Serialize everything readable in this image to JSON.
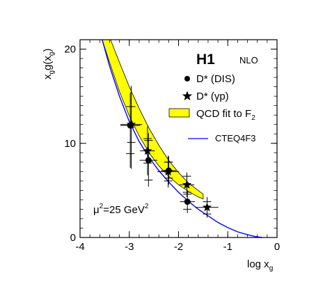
{
  "chart_data": {
    "type": "scatter",
    "xlim": [
      -4,
      0
    ],
    "ylim": [
      0,
      21
    ],
    "x_ticks": [
      -4,
      -3,
      -2,
      -1,
      0
    ],
    "y_ticks": [
      0,
      10,
      20
    ],
    "x_tick_labels": [
      "-4",
      "-3",
      "-2",
      "-1",
      "0"
    ],
    "y_tick_labels": [
      "0",
      "10",
      "20"
    ],
    "xlabel_main": "log x",
    "xlabel_sub": "g",
    "ylabel_parts": {
      "a": "x",
      "a_sub": "g",
      "b": "g(x",
      "b_sub": "g",
      "c": ")"
    },
    "experiment": "H1",
    "order": "NLO",
    "scale_label": {
      "mu": "μ",
      "sup": "2",
      "mid": "=25 GeV",
      "sup2": "2"
    },
    "legend": {
      "dis": {
        "text": "D* (DIS)"
      },
      "gp": {
        "text": "D* (γp)"
      },
      "band": {
        "text": "QCD fit to F",
        "sub": "2",
        "color": "#ffff00"
      },
      "line": {
        "text": "CTEQ4F3",
        "color": "#0000ff"
      }
    },
    "series": [
      {
        "name": "D* (DIS)",
        "marker": "circle",
        "points": [
          {
            "x": -2.98,
            "y": 11.9,
            "xerr": 0.2,
            "ylo": 8.9,
            "yhi": 13.9,
            "ylo2": 7.4,
            "yhi2": 15.4
          },
          {
            "x": -2.61,
            "y": 8.2,
            "xerr": 0.18,
            "ylo": 6.1,
            "yhi": 10.3,
            "ylo2": 5.4,
            "yhi2": 11.1
          },
          {
            "x": -2.2,
            "y": 7.1,
            "xerr": 0.15,
            "ylo": 6.3,
            "yhi": 8.0,
            "ylo2": 5.6,
            "yhi2": 8.6
          },
          {
            "x": -1.82,
            "y": 3.8,
            "xerr": 0.15,
            "ylo": 3.0,
            "yhi": 4.6,
            "ylo2": 2.6,
            "yhi2": 5.0
          }
        ]
      },
      {
        "name": "D* (γp)",
        "marker": "star",
        "points": [
          {
            "x": -2.96,
            "y": 12.0,
            "xerr": 0.22,
            "ylo": 10.1,
            "yhi": 13.9,
            "ylo2": 7.3,
            "yhi2": 16.1
          },
          {
            "x": -2.63,
            "y": 9.2,
            "xerr": 0.15,
            "ylo": 7.9,
            "yhi": 10.5,
            "ylo2": 6.6,
            "yhi2": 11.8
          },
          {
            "x": -2.21,
            "y": 7.0,
            "xerr": 0.22,
            "ylo": 6.0,
            "yhi": 8.0,
            "ylo2": 5.3,
            "yhi2": 8.7
          },
          {
            "x": -1.83,
            "y": 5.6,
            "xerr": 0.15,
            "ylo": 4.8,
            "yhi": 6.5,
            "ylo2": 4.3,
            "yhi2": 6.9
          },
          {
            "x": -1.42,
            "y": 3.2,
            "xerr": 0.23,
            "ylo": 2.5,
            "yhi": 3.8,
            "ylo2": 2.1,
            "yhi2": 4.3
          }
        ]
      }
    ],
    "band_upper": [
      {
        "x": -3.38,
        "y": 21.0
      },
      {
        "x": -3.2,
        "y": 18.6
      },
      {
        "x": -3.0,
        "y": 16.0
      },
      {
        "x": -2.8,
        "y": 13.7
      },
      {
        "x": -2.6,
        "y": 11.6
      },
      {
        "x": -2.4,
        "y": 9.8
      },
      {
        "x": -2.2,
        "y": 8.2
      },
      {
        "x": -2.0,
        "y": 6.9
      },
      {
        "x": -1.8,
        "y": 5.8
      },
      {
        "x": -1.6,
        "y": 5.0
      },
      {
        "x": -1.5,
        "y": 4.6
      }
    ],
    "band_lower": [
      {
        "x": -3.55,
        "y": 21.0
      },
      {
        "x": -3.4,
        "y": 18.6
      },
      {
        "x": -3.2,
        "y": 15.5
      },
      {
        "x": -3.0,
        "y": 12.9
      },
      {
        "x": -2.8,
        "y": 10.8
      },
      {
        "x": -2.6,
        "y": 9.0
      },
      {
        "x": -2.4,
        "y": 7.6
      },
      {
        "x": -2.2,
        "y": 6.5
      },
      {
        "x": -2.0,
        "y": 5.6
      },
      {
        "x": -1.8,
        "y": 4.9
      },
      {
        "x": -1.6,
        "y": 4.3
      },
      {
        "x": -1.5,
        "y": 4.1
      }
    ],
    "cteq_curve": [
      {
        "x": -3.55,
        "y": 21.0
      },
      {
        "x": -3.4,
        "y": 18.2
      },
      {
        "x": -3.2,
        "y": 15.0
      },
      {
        "x": -3.0,
        "y": 12.3
      },
      {
        "x": -2.8,
        "y": 10.2
      },
      {
        "x": -2.6,
        "y": 8.5
      },
      {
        "x": -2.4,
        "y": 7.1
      },
      {
        "x": -2.2,
        "y": 5.9
      },
      {
        "x": -2.0,
        "y": 4.8
      },
      {
        "x": -1.8,
        "y": 3.85
      },
      {
        "x": -1.6,
        "y": 3.0
      },
      {
        "x": -1.4,
        "y": 2.3
      },
      {
        "x": -1.2,
        "y": 1.6
      },
      {
        "x": -1.0,
        "y": 1.05
      },
      {
        "x": -0.8,
        "y": 0.6
      },
      {
        "x": -0.6,
        "y": 0.3
      },
      {
        "x": -0.45,
        "y": 0.1
      },
      {
        "x": -0.3,
        "y": 0.0
      }
    ]
  }
}
